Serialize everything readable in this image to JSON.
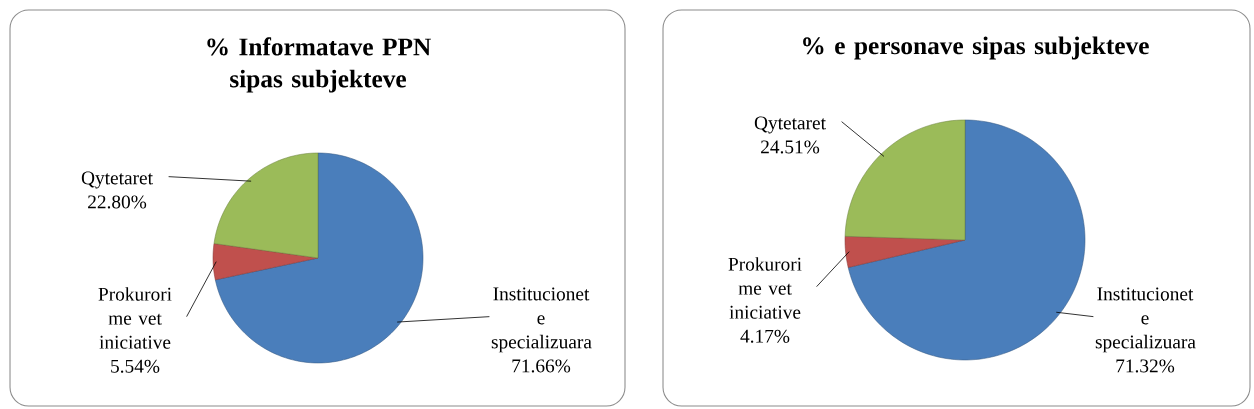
{
  "chart_data": [
    {
      "type": "pie",
      "title": "% Informatave PPN sipas subjekteve",
      "categories": [
        "Institucionet e specializuara",
        "Prokurori me vet iniciative",
        "Qytetaret"
      ],
      "values": [
        71.66,
        5.54,
        22.8
      ],
      "value_labels": [
        "71.66%",
        "5.54%",
        "22.80%"
      ],
      "colors": [
        "#4a7ebb",
        "#c0504d",
        "#9bbb59"
      ]
    },
    {
      "type": "pie",
      "title": "% e personave sipas subjekteve",
      "categories": [
        "Institucionet e specializuara",
        "Prokurori me vet iniciative",
        "Qytetaret"
      ],
      "values": [
        71.32,
        4.17,
        24.51
      ],
      "value_labels": [
        "71.32%",
        "4.17%",
        "24.51%"
      ],
      "colors": [
        "#4a7ebb",
        "#c0504d",
        "#9bbb59"
      ]
    }
  ]
}
